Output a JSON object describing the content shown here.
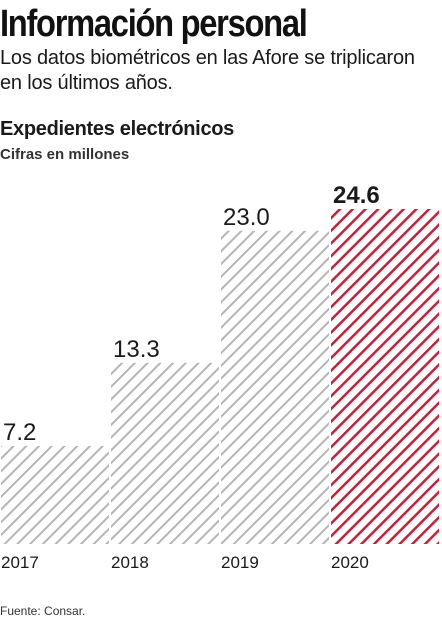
{
  "header": {
    "title": "Información personal",
    "subtitle": "Los datos biométricos en las Afore se triplicaron en los últimos años."
  },
  "chart_data": {
    "type": "bar",
    "title": "Expedientes electrónicos",
    "subtitle": "Cifras en millones",
    "categories": [
      "2017",
      "2018",
      "2019",
      "2020"
    ],
    "values": [
      7.2,
      13.3,
      23.0,
      24.6
    ],
    "value_labels": [
      "7.2",
      "13.3",
      "23.0",
      "24.6"
    ],
    "highlight_index": 3,
    "ylim": [
      0,
      24.6
    ],
    "grid": false,
    "legend": "none",
    "colors": {
      "normal": "#b5b5b5",
      "highlight": "#c8203a"
    }
  },
  "footer": {
    "source": "Fuente: Consar."
  }
}
